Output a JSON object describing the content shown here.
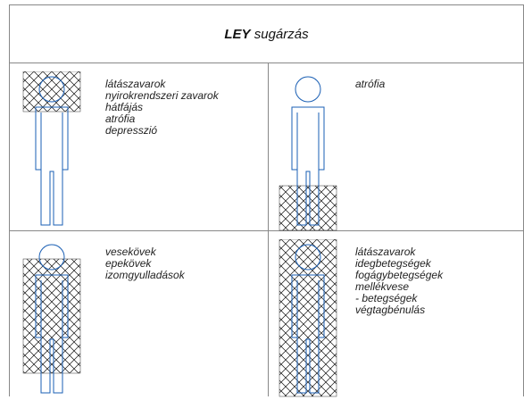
{
  "header": {
    "title_bold": "LEY",
    "title_rest": "sugárzás"
  },
  "cells": [
    {
      "items": [
        "látászavarok",
        "nyirokrendszeri zavarok",
        "hátfájás",
        "atrófia",
        "depresszió"
      ]
    },
    {
      "items": [
        "atrófia"
      ]
    },
    {
      "items": [
        "vesekövek",
        "epekövek",
        "izomgyulladások"
      ]
    },
    {
      "items": [
        "látászavarok",
        "idegbetegségek",
        "fogágybetegségek",
        "mellékvese",
        "- betegségek",
        "végtagbénulás"
      ]
    }
  ]
}
